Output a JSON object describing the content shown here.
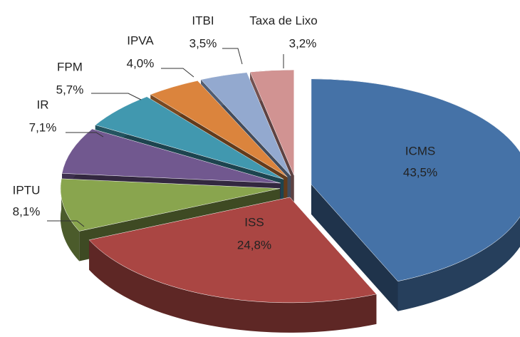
{
  "chart_data": {
    "type": "pie",
    "categories": [
      "ICMS",
      "ISS",
      "IPTU",
      "IR",
      "FPM",
      "IPVA",
      "ITBI",
      "Taxa de Lixo"
    ],
    "values": [
      43.5,
      24.8,
      8.1,
      7.1,
      5.7,
      4.0,
      3.5,
      3.2
    ],
    "value_labels": [
      "43,5%",
      "24,8%",
      "8,1%",
      "7,1%",
      "5,7%",
      "4,0%",
      "3,5%",
      "3,2%"
    ],
    "colors": [
      "#4572a7",
      "#aa4643",
      "#89a54e",
      "#71588f",
      "#4198af",
      "#db843d",
      "#93a9cf",
      "#d19392"
    ]
  }
}
